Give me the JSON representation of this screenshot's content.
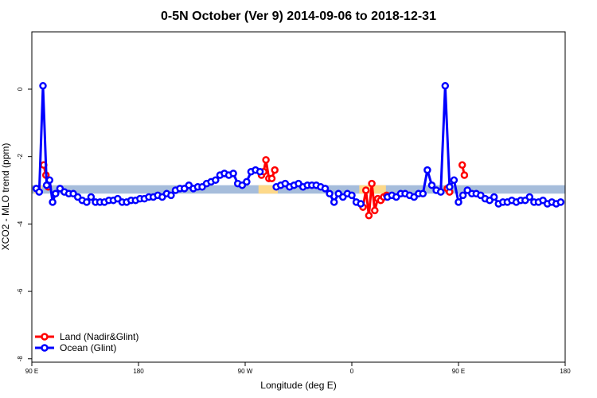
{
  "chart_data": {
    "type": "line",
    "title": "0-5N October (Ver 9)   2014-09-06 to 2018-12-31",
    "xlabel": "Longitude (deg E)",
    "ylabel": "XCO2 - MLO trend (ppm)",
    "xlim": [
      90,
      450
    ],
    "ylim": [
      -8.1,
      1.7
    ],
    "x_ticks": [
      {
        "value": 90,
        "label": "90 E"
      },
      {
        "value": 162,
        "label": "180"
      },
      {
        "value": 234,
        "label": "90 W"
      },
      {
        "value": 306,
        "label": "0"
      },
      {
        "value": 378,
        "label": "90 E"
      },
      {
        "value": 450,
        "label": "180"
      }
    ],
    "y_ticks": [
      {
        "value": 0,
        "label": "0"
      },
      {
        "value": -2,
        "label": "-2"
      },
      {
        "value": -4,
        "label": "-4"
      },
      {
        "value": -6,
        "label": "-6"
      },
      {
        "value": -8,
        "label": "-8"
      }
    ],
    "grid": false,
    "legend_position": "bottom-left",
    "band": {
      "y_low": -3.1,
      "y_high": -2.85,
      "ocean_color": "#a6bddb",
      "land_color": "#fdd98a",
      "land_ranges": [
        [
          91.5,
          97
        ],
        [
          243,
          256
        ],
        [
          311,
          329
        ],
        [
          370,
          374
        ]
      ]
    },
    "series": [
      {
        "name": "Land (Nadir&Glint)",
        "color": "#ff0000",
        "segments": [
          {
            "x": [
              98,
              99.5,
              101
            ],
            "y": [
              -2.25,
              -2.55,
              -2.9
            ]
          },
          {
            "x": [
              245,
              246.5,
              248,
              250,
              252,
              254
            ],
            "y": [
              -2.55,
              -2.45,
              -2.1,
              -2.65,
              -2.65,
              -2.4
            ]
          },
          {
            "x": [
              313.5,
              315.5,
              317.5,
              319.5,
              321.5,
              323.5,
              325.5,
              327.5,
              329.5
            ],
            "y": [
              -3.5,
              -3.0,
              -3.75,
              -2.8,
              -3.6,
              -3.25,
              -3.3,
              -3.2,
              -3.15
            ]
          },
          {
            "x": [
              370.5,
              372
            ],
            "y": [
              -2.95,
              -3.05
            ]
          },
          {
            "x": [
              380.5,
              382
            ],
            "y": [
              -2.25,
              -2.55
            ]
          }
        ]
      },
      {
        "name": "Ocean (Glint)",
        "color": "#0000ff",
        "segments": [
          {
            "x": [
              93,
              95,
              97.5,
              100,
              102,
              104,
              106,
              109,
              112,
              115,
              118,
              121,
              124,
              127,
              130,
              133,
              136,
              139,
              142,
              145,
              148,
              151,
              154,
              157,
              160,
              163,
              166,
              169,
              172,
              175,
              178,
              181,
              184,
              187,
              190,
              193,
              196,
              199,
              202,
              205,
              208,
              211,
              214,
              217,
              220,
              223,
              226,
              229,
              232,
              235,
              238,
              241,
              244
            ],
            "y": [
              -2.95,
              -3.05,
              0.1,
              -2.85,
              -2.7,
              -3.35,
              -3.1,
              -2.95,
              -3.05,
              -3.1,
              -3.1,
              -3.2,
              -3.3,
              -3.35,
              -3.2,
              -3.35,
              -3.35,
              -3.35,
              -3.3,
              -3.3,
              -3.25,
              -3.35,
              -3.35,
              -3.3,
              -3.3,
              -3.25,
              -3.25,
              -3.2,
              -3.2,
              -3.15,
              -3.2,
              -3.1,
              -3.15,
              -3.0,
              -2.95,
              -2.95,
              -2.85,
              -2.95,
              -2.9,
              -2.9,
              -2.8,
              -2.75,
              -2.7,
              -2.55,
              -2.5,
              -2.55,
              -2.5,
              -2.8,
              -2.85,
              -2.75,
              -2.45,
              -2.4,
              -2.45
            ]
          },
          {
            "x": [
              255,
              258,
              261,
              264,
              267,
              270,
              273,
              276,
              279,
              282,
              285,
              288,
              291,
              294,
              297,
              300,
              303,
              306,
              309,
              312
            ],
            "y": [
              -2.9,
              -2.85,
              -2.8,
              -2.9,
              -2.85,
              -2.8,
              -2.9,
              -2.85,
              -2.85,
              -2.85,
              -2.9,
              -2.95,
              -3.1,
              -3.35,
              -3.1,
              -3.2,
              -3.1,
              -3.15,
              -3.35,
              -3.4
            ]
          },
          {
            "x": [
              330,
              333,
              336,
              339,
              342,
              345,
              348,
              351,
              354,
              357,
              360,
              363,
              366,
              369,
              372,
              375,
              378,
              381,
              384,
              387,
              390,
              393,
              396,
              399,
              402,
              405,
              408,
              411,
              414,
              417,
              420,
              423,
              426,
              429,
              432,
              435,
              438,
              441,
              444,
              447
            ],
            "y": [
              -3.2,
              -3.15,
              -3.2,
              -3.1,
              -3.1,
              -3.15,
              -3.2,
              -3.1,
              -3.1,
              -2.4,
              -2.85,
              -3.0,
              -3.05,
              0.1,
              -2.9,
              -2.7,
              -3.35,
              -3.15,
              -3.0,
              -3.1,
              -3.1,
              -3.15,
              -3.25,
              -3.3,
              -3.2,
              -3.4,
              -3.35,
              -3.35,
              -3.3,
              -3.35,
              -3.3,
              -3.3,
              -3.2,
              -3.35,
              -3.35,
              -3.3,
              -3.4,
              -3.35,
              -3.4,
              -3.35
            ]
          }
        ]
      }
    ]
  }
}
